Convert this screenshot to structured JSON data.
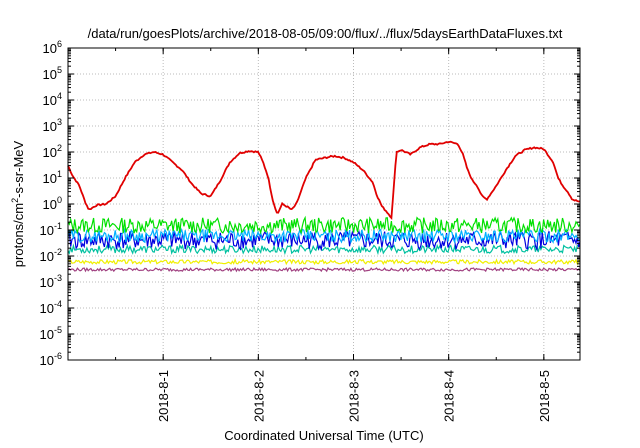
{
  "chart_data": {
    "type": "line",
    "title": "/data/run/goesPlots/archive/2018-08-05/09:00/flux/../flux/5daysEarthDataFluxes.txt",
    "xlabel": "Coordinated Universal Time (UTC)",
    "ylabel": {
      "pre": "protons/cm",
      "sup": "2",
      "post": "-s-sr-MeV"
    },
    "yscale": "log",
    "ylim": [
      1e-06,
      1000000.0
    ],
    "xlim": [
      0,
      5.38
    ],
    "grid": true,
    "x_ticks": [
      {
        "x": 1,
        "label": "2018-8-1"
      },
      {
        "x": 2,
        "label": "2018-8-2"
      },
      {
        "x": 3,
        "label": "2018-8-3"
      },
      {
        "x": 4,
        "label": "2018-8-4"
      },
      {
        "x": 5,
        "label": "2018-8-5"
      }
    ],
    "y_ticks": [
      {
        "exp": -6,
        "base": "10",
        "sup": "-6"
      },
      {
        "exp": -5,
        "base": "10",
        "sup": "-5"
      },
      {
        "exp": -4,
        "base": "10",
        "sup": "-4"
      },
      {
        "exp": -3,
        "base": "10",
        "sup": "-3"
      },
      {
        "exp": -2,
        "base": "10",
        "sup": "-2"
      },
      {
        "exp": -1,
        "base": "10",
        "sup": "-1"
      },
      {
        "exp": 0,
        "base": "10",
        "sup": "0"
      },
      {
        "exp": 1,
        "base": "10",
        "sup": "1"
      },
      {
        "exp": 2,
        "base": "10",
        "sup": "2"
      },
      {
        "exp": 3,
        "base": "10",
        "sup": "3"
      },
      {
        "exp": 4,
        "base": "10",
        "sup": "4"
      },
      {
        "exp": 5,
        "base": "10",
        "sup": "5"
      },
      {
        "exp": 6,
        "base": "10",
        "sup": "6"
      }
    ],
    "series": [
      {
        "color": "#e00000",
        "noise": 0.03,
        "x": [
          0,
          0.05,
          0.12,
          0.18,
          0.22,
          0.3,
          0.4,
          0.5,
          0.6,
          0.7,
          0.8,
          0.9,
          1.0,
          1.1,
          1.2,
          1.3,
          1.4,
          1.5,
          1.6,
          1.7,
          1.8,
          1.9,
          2.0,
          2.05,
          2.1,
          2.15,
          2.2,
          2.25,
          2.3,
          2.35,
          2.4,
          2.5,
          2.6,
          2.7,
          2.8,
          2.9,
          3.0,
          3.1,
          3.2,
          3.25,
          3.3,
          3.35,
          3.4,
          3.45,
          3.5,
          3.6,
          3.7,
          3.8,
          3.9,
          4.0,
          4.1,
          4.15,
          4.2,
          4.25,
          4.3,
          4.35,
          4.4,
          4.5,
          4.6,
          4.7,
          4.8,
          4.9,
          5.0,
          5.1,
          5.15,
          5.2,
          5.25,
          5.3,
          5.38
        ],
        "y": [
          30,
          12,
          5,
          1.2,
          0.6,
          0.9,
          1.0,
          2.0,
          10,
          40,
          80,
          100,
          80,
          40,
          20,
          6,
          2.5,
          2.0,
          8,
          40,
          90,
          110,
          100,
          40,
          12,
          1.5,
          0.4,
          1.0,
          0.8,
          0.6,
          1.0,
          10,
          50,
          60,
          70,
          60,
          40,
          20,
          7,
          2.0,
          0.8,
          0.5,
          0.3,
          100,
          120,
          80,
          150,
          200,
          200,
          250,
          200,
          80,
          20,
          8,
          5,
          2,
          1.5,
          5,
          20,
          70,
          120,
          150,
          130,
          40,
          10,
          5,
          3,
          1.5,
          1.2
        ]
      },
      {
        "color": "#00e000",
        "noise": 0.3,
        "x": [
          0,
          1,
          2,
          3,
          4,
          5,
          5.38
        ],
        "y": [
          0.15,
          0.15,
          0.15,
          0.15,
          0.15,
          0.15,
          0.15
        ]
      },
      {
        "color": "#00b0ff",
        "noise": 0.25,
        "x": [
          0,
          1,
          2,
          3,
          4,
          5,
          5.38
        ],
        "y": [
          0.06,
          0.06,
          0.06,
          0.06,
          0.06,
          0.06,
          0.06
        ]
      },
      {
        "color": "#0000e0",
        "noise": 0.35,
        "x": [
          0,
          1,
          2,
          3,
          4,
          5,
          5.38
        ],
        "y": [
          0.04,
          0.04,
          0.04,
          0.04,
          0.04,
          0.04,
          0.04
        ]
      },
      {
        "color": "#00c0a0",
        "noise": 0.15,
        "x": [
          0,
          1,
          2,
          3,
          4,
          5,
          5.38
        ],
        "y": [
          0.018,
          0.018,
          0.018,
          0.018,
          0.018,
          0.018,
          0.018
        ]
      },
      {
        "color": "#f0f000",
        "noise": 0.08,
        "x": [
          0,
          1,
          2,
          3,
          4,
          5,
          5.38
        ],
        "y": [
          0.006,
          0.006,
          0.006,
          0.006,
          0.006,
          0.006,
          0.006
        ]
      },
      {
        "color": "#a04080",
        "noise": 0.06,
        "x": [
          0,
          1,
          2,
          3,
          4,
          5,
          5.38
        ],
        "y": [
          0.003,
          0.003,
          0.003,
          0.003,
          0.003,
          0.003,
          0.003
        ]
      }
    ]
  }
}
